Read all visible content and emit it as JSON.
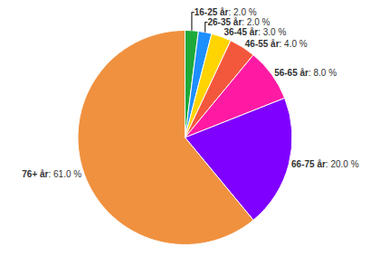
{
  "chart_data": {
    "type": "pie",
    "categories": [
      "16-25 år",
      "26-35 år",
      "36-45 år",
      "46-55 år",
      "56-65 år",
      "66-75 år",
      "76+ år"
    ],
    "values": [
      2,
      2,
      3,
      4,
      8,
      20,
      61
    ],
    "value_labels": [
      "2.0 %",
      "2.0 %",
      "3.0 %",
      "4.0 %",
      "8.0 %",
      "20.0 %",
      "61.0 %"
    ],
    "colors": [
      "#1daa3a",
      "#1e8fff",
      "#ffd400",
      "#f4583c",
      "#ff1aa3",
      "#8000ff",
      "#f0913f"
    ],
    "data_labels": true
  }
}
